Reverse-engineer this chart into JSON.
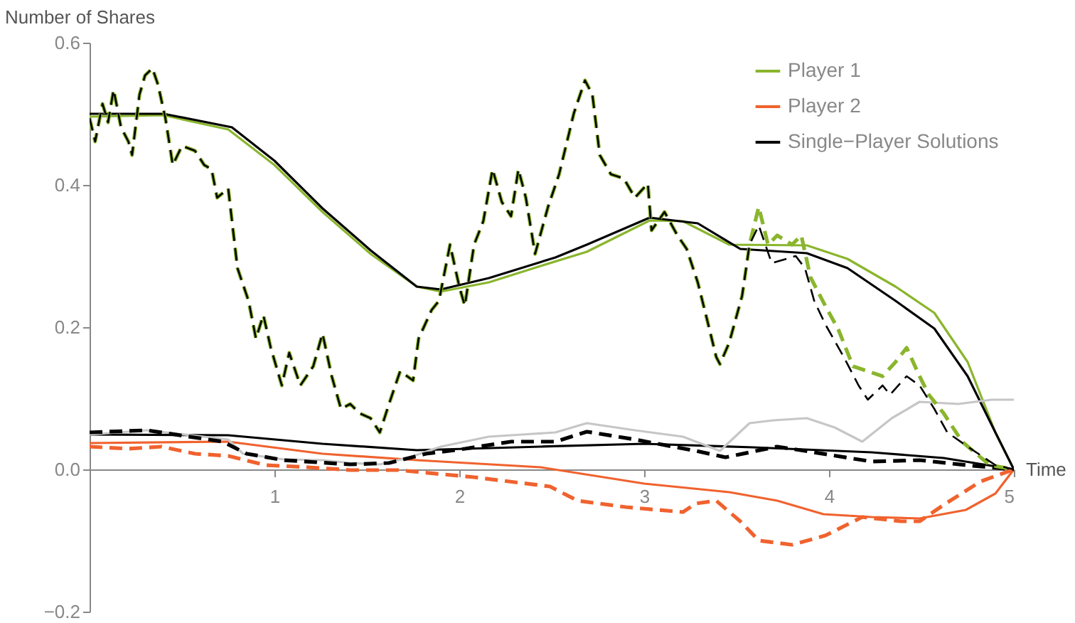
{
  "chart_data": {
    "type": "line",
    "xlabel": "Time",
    "ylabel": "Number of Shares",
    "xlim": [
      0,
      5
    ],
    "xticks": [
      1,
      2,
      3,
      4,
      5
    ],
    "ylim": [
      -0.2,
      0.6
    ],
    "yticks": [
      {
        "value": -0.2,
        "label": "−0.2"
      },
      {
        "value": 0,
        "label": "0.0"
      },
      0.2,
      0.4,
      0.6
    ],
    "grid": false,
    "legend": "top right",
    "series": [
      {
        "name": "Player 1",
        "color": "#8ab52d",
        "line_style": "solid",
        "x": [
          0,
          0.4,
          0.75,
          1.0,
          1.26,
          1.52,
          1.77,
          1.9,
          2.16,
          2.44,
          2.69,
          3.03,
          3.21,
          3.46,
          3.88,
          4.1,
          4.36,
          4.57,
          4.75,
          4.9,
          5.0
        ],
        "values": [
          0.496,
          0.498,
          0.478,
          0.428,
          0.362,
          0.303,
          0.257,
          0.25,
          0.263,
          0.286,
          0.306,
          0.35,
          0.349,
          0.316,
          0.315,
          0.296,
          0.257,
          0.22,
          0.151,
          0.052,
          0
        ]
      },
      {
        "name": "Player 2",
        "color": "#f0622e",
        "line_style": "solid",
        "x": [
          0,
          0.75,
          1.26,
          1.77,
          2.44,
          3.0,
          3.46,
          3.72,
          3.97,
          4.23,
          4.49,
          4.74,
          4.9,
          5.0
        ],
        "values": [
          0.037,
          0.039,
          0.022,
          0.013,
          0.003,
          -0.02,
          -0.032,
          -0.044,
          -0.063,
          -0.067,
          -0.069,
          -0.057,
          -0.034,
          0
        ]
      },
      {
        "name": "Single−Player Solutions",
        "color": "#000000",
        "line_style": "solid",
        "x": [
          0,
          0.4,
          0.77,
          1.0,
          1.26,
          1.52,
          1.77,
          1.9,
          2.16,
          2.52,
          2.69,
          3.03,
          3.29,
          3.52,
          3.88,
          4.1,
          4.36,
          4.57,
          4.75,
          4.9,
          5.0
        ],
        "values": [
          0.5,
          0.5,
          0.481,
          0.434,
          0.367,
          0.308,
          0.257,
          0.253,
          0.269,
          0.298,
          0.316,
          0.354,
          0.346,
          0.31,
          0.304,
          0.283,
          0.237,
          0.198,
          0.131,
          0.052,
          0
        ]
      },
      {
        "color": "#000000",
        "line_style": "solid",
        "x": [
          0,
          0.75,
          1.26,
          1.77,
          2.44,
          3.0,
          3.59,
          4.23,
          4.62,
          5.0
        ],
        "values": [
          0.049,
          0.048,
          0.036,
          0.027,
          0.032,
          0.036,
          0.031,
          0.024,
          0.016,
          0
        ]
      },
      {
        "color": "#c6c6c6",
        "line_style": "solid",
        "x": [
          0,
          0.31,
          0.75,
          0.83,
          1.05,
          1.26,
          1.41,
          1.57,
          1.72,
          1.9,
          2.16,
          2.34,
          2.52,
          2.69,
          2.95,
          3.21,
          3.41,
          3.57,
          3.7,
          3.88,
          4.03,
          4.18,
          4.34,
          4.49,
          4.7,
          4.88,
          5.0
        ],
        "values": [
          0.049,
          0.055,
          0.042,
          0.022,
          0.014,
          0.013,
          0.009,
          0.007,
          0.016,
          0.032,
          0.046,
          0.049,
          0.052,
          0.065,
          0.055,
          0.046,
          0.026,
          0.065,
          0.069,
          0.072,
          0.059,
          0.039,
          0.072,
          0.095,
          0.092,
          0.098,
          0.098
        ]
      },
      {
        "color": "#000000",
        "line_style": "dashed",
        "x": [
          0,
          0.31,
          0.72,
          0.85,
          1.05,
          1.41,
          1.62,
          1.82,
          2.03,
          2.28,
          2.52,
          2.69,
          2.95,
          3.28,
          3.44,
          3.72,
          3.87,
          4.23,
          4.49,
          4.74,
          5.0
        ],
        "values": [
          0.052,
          0.055,
          0.039,
          0.022,
          0.013,
          0.007,
          0.009,
          0.022,
          0.029,
          0.039,
          0.039,
          0.053,
          0.042,
          0.026,
          0.017,
          0.032,
          0.026,
          0.011,
          0.013,
          0.006,
          0
        ]
      },
      {
        "color": "#f0622e",
        "line_style": "dashed",
        "x": [
          0,
          0.21,
          0.39,
          0.57,
          0.75,
          0.95,
          1.18,
          1.41,
          1.67,
          2.08,
          2.49,
          2.64,
          2.9,
          3.21,
          3.28,
          3.39,
          3.52,
          3.62,
          3.8,
          3.98,
          4.18,
          4.39,
          4.49,
          4.62,
          4.82,
          5.0
        ],
        "values": [
          0.032,
          0.029,
          0.032,
          0.022,
          0.019,
          0.006,
          0.003,
          -0.001,
          -0.001,
          -0.011,
          -0.024,
          -0.044,
          -0.053,
          -0.06,
          -0.048,
          -0.044,
          -0.073,
          -0.1,
          -0.106,
          -0.093,
          -0.067,
          -0.073,
          -0.073,
          -0.05,
          -0.017,
          0
        ]
      },
      {
        "color": "#8ab52d",
        "line_style": "dashed",
        "x": [
          0,
          0.03,
          0.07,
          0.1,
          0.13,
          0.17,
          0.21,
          0.23,
          0.27,
          0.3,
          0.34,
          0.37,
          0.41,
          0.45,
          0.5,
          0.57,
          0.62,
          0.66,
          0.69,
          0.75,
          0.8,
          0.86,
          0.9,
          0.94,
          0.98,
          1.04,
          1.08,
          1.14,
          1.21,
          1.26,
          1.31,
          1.36,
          1.41,
          1.46,
          1.52,
          1.57,
          1.62,
          1.68,
          1.75,
          1.78,
          1.85,
          1.89,
          1.95,
          2.0,
          2.03,
          2.08,
          2.13,
          2.18,
          2.23,
          2.28,
          2.32,
          2.36,
          2.41,
          2.48,
          2.54,
          2.62,
          2.68,
          2.72,
          2.76,
          2.82,
          2.89,
          2.95,
          3.02,
          3.04,
          3.11,
          3.18,
          3.23,
          3.29,
          3.34,
          3.39,
          3.41,
          3.46,
          3.53,
          3.57,
          3.62,
          3.67,
          3.72,
          3.8,
          3.85,
          3.9,
          3.98,
          4.05,
          4.13,
          4.21,
          4.29,
          4.36,
          4.42,
          4.49,
          4.54,
          4.62,
          4.72,
          4.87,
          5.0
        ],
        "values": [
          0.494,
          0.461,
          0.514,
          0.488,
          0.534,
          0.481,
          0.461,
          0.442,
          0.527,
          0.554,
          0.564,
          0.541,
          0.494,
          0.428,
          0.455,
          0.448,
          0.428,
          0.422,
          0.382,
          0.395,
          0.283,
          0.237,
          0.184,
          0.217,
          0.171,
          0.118,
          0.164,
          0.118,
          0.145,
          0.191,
          0.131,
          0.085,
          0.092,
          0.079,
          0.072,
          0.052,
          0.092,
          0.138,
          0.125,
          0.184,
          0.224,
          0.237,
          0.316,
          0.257,
          0.23,
          0.316,
          0.349,
          0.422,
          0.376,
          0.356,
          0.422,
          0.382,
          0.303,
          0.369,
          0.415,
          0.501,
          0.547,
          0.527,
          0.442,
          0.415,
          0.409,
          0.382,
          0.402,
          0.336,
          0.362,
          0.329,
          0.31,
          0.263,
          0.211,
          0.158,
          0.148,
          0.178,
          0.244,
          0.316,
          0.369,
          0.316,
          0.329,
          0.316,
          0.329,
          0.27,
          0.23,
          0.197,
          0.145,
          0.138,
          0.131,
          0.151,
          0.171,
          0.131,
          0.105,
          0.079,
          0.039,
          0.006,
          0
        ]
      },
      {
        "color": "#000000",
        "line_style": "dashed",
        "x": [
          0,
          0.03,
          0.07,
          0.1,
          0.13,
          0.17,
          0.21,
          0.23,
          0.27,
          0.3,
          0.34,
          0.37,
          0.41,
          0.45,
          0.5,
          0.57,
          0.62,
          0.66,
          0.69,
          0.75,
          0.8,
          0.86,
          0.9,
          0.94,
          0.98,
          1.04,
          1.08,
          1.14,
          1.21,
          1.26,
          1.31,
          1.36,
          1.41,
          1.46,
          1.52,
          1.57,
          1.62,
          1.68,
          1.75,
          1.78,
          1.85,
          1.89,
          1.95,
          2.0,
          2.03,
          2.08,
          2.13,
          2.18,
          2.23,
          2.28,
          2.32,
          2.36,
          2.41,
          2.48,
          2.54,
          2.62,
          2.68,
          2.72,
          2.76,
          2.82,
          2.89,
          2.95,
          3.02,
          3.04,
          3.11,
          3.18,
          3.23,
          3.29,
          3.34,
          3.39,
          3.41,
          3.46,
          3.53,
          3.57,
          3.62,
          3.69,
          3.77,
          3.82,
          3.87,
          3.92,
          3.98,
          4.08,
          4.16,
          4.21,
          4.29,
          4.33,
          4.42,
          4.49,
          4.57,
          4.64,
          4.75,
          4.9,
          5.0
        ],
        "values": [
          0.494,
          0.461,
          0.514,
          0.488,
          0.534,
          0.481,
          0.461,
          0.442,
          0.527,
          0.554,
          0.564,
          0.541,
          0.494,
          0.428,
          0.455,
          0.448,
          0.428,
          0.422,
          0.382,
          0.395,
          0.283,
          0.237,
          0.184,
          0.217,
          0.171,
          0.118,
          0.164,
          0.118,
          0.145,
          0.191,
          0.131,
          0.085,
          0.092,
          0.079,
          0.072,
          0.052,
          0.092,
          0.138,
          0.125,
          0.184,
          0.224,
          0.237,
          0.316,
          0.257,
          0.23,
          0.316,
          0.349,
          0.422,
          0.376,
          0.356,
          0.422,
          0.382,
          0.303,
          0.369,
          0.415,
          0.501,
          0.547,
          0.527,
          0.442,
          0.415,
          0.409,
          0.382,
          0.402,
          0.336,
          0.362,
          0.329,
          0.31,
          0.263,
          0.211,
          0.158,
          0.148,
          0.178,
          0.244,
          0.316,
          0.343,
          0.29,
          0.296,
          0.3,
          0.283,
          0.237,
          0.204,
          0.158,
          0.118,
          0.098,
          0.118,
          0.105,
          0.131,
          0.118,
          0.085,
          0.052,
          0.032,
          0.006,
          0
        ]
      }
    ]
  }
}
